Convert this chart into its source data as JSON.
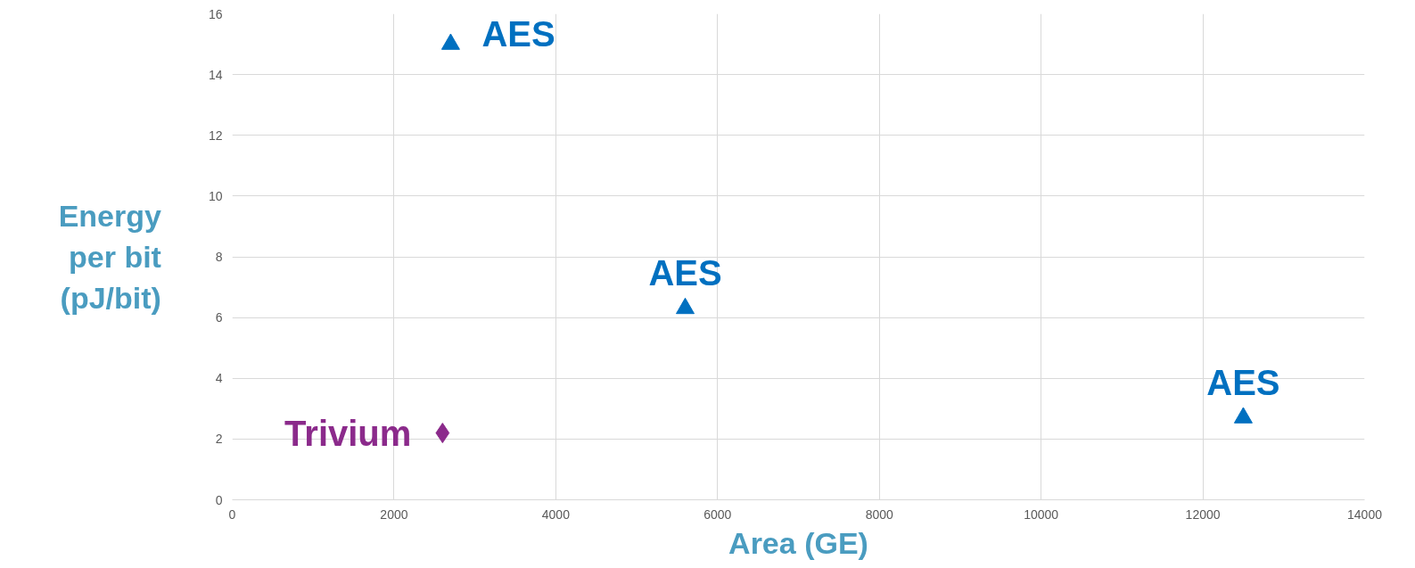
{
  "chart_data": {
    "type": "scatter",
    "xlabel": "Area (GE)",
    "ylabel": "Energy\nper bit\n(pJ/bit)",
    "series": [
      {
        "name": "AES",
        "color": "#0070c0",
        "marker": "triangle",
        "x": [
          2700,
          5600,
          12500
        ],
        "values": [
          15.0,
          6.3,
          2.7
        ]
      },
      {
        "name": "Trivium",
        "color": "#8b2a8b",
        "marker": "diamond",
        "x": [
          2600
        ],
        "values": [
          2.2
        ]
      }
    ],
    "xlim": [
      0,
      14000
    ],
    "ylim": [
      0,
      16
    ],
    "xticks": [
      0,
      2000,
      4000,
      6000,
      8000,
      10000,
      12000,
      14000
    ],
    "yticks": [
      0,
      2,
      4,
      6,
      8,
      10,
      12,
      14,
      16
    ],
    "grid": true
  }
}
